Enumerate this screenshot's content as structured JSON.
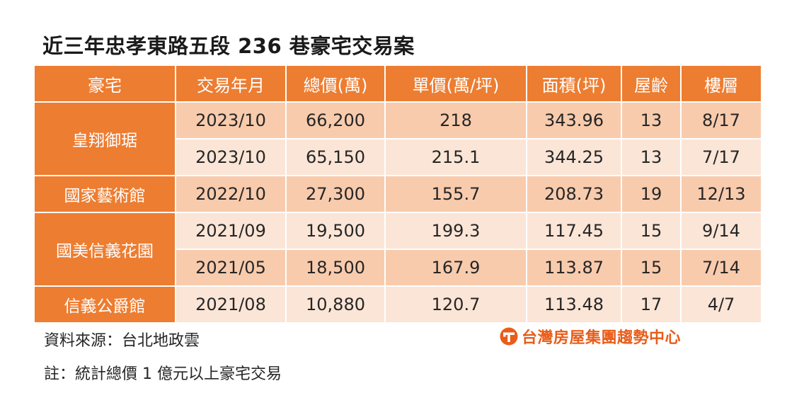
{
  "title": "近三年忠孝東路五段 236 巷豪宅交易案",
  "headers": [
    "豪宅",
    "交易年月",
    "總價(萬)",
    "單價(萬/坪)",
    "面積(坪)",
    "屋齡",
    "樓層"
  ],
  "groups": [
    {
      "name": "皇翔御琚",
      "rows": [
        [
          "2023/10",
          "66,200",
          "218",
          "343.96",
          "13",
          "8/17"
        ],
        [
          "2023/10",
          "65,150",
          "215.1",
          "344.25",
          "13",
          "7/17"
        ]
      ]
    },
    {
      "name": "國家藝術館",
      "rows": [
        [
          "2022/10",
          "27,300",
          "155.7",
          "208.73",
          "19",
          "12/13"
        ]
      ]
    },
    {
      "name": "國美信義花園",
      "rows": [
        [
          "2021/09",
          "19,500",
          "199.3",
          "117.45",
          "15",
          "9/14"
        ],
        [
          "2021/05",
          "18,500",
          "167.9",
          "113.87",
          "15",
          "7/14"
        ]
      ]
    },
    {
      "name": "信義公爵館",
      "rows": [
        [
          "2021/08",
          "10,880",
          "120.7",
          "113.48",
          "17",
          "4/7"
        ]
      ]
    }
  ],
  "source": "資料來源：台北地政雲",
  "note": "註：統計總價 1 億元以上豪宅交易",
  "brand": "台灣房屋集團趨勢中心",
  "colors": {
    "header": "#ed7d31",
    "row_dark": "#f8cbad",
    "row_light": "#fbe5d6",
    "brand": "#e85d1a"
  },
  "icons": {
    "brand_logo": "taiwan-realty-logo-icon"
  }
}
